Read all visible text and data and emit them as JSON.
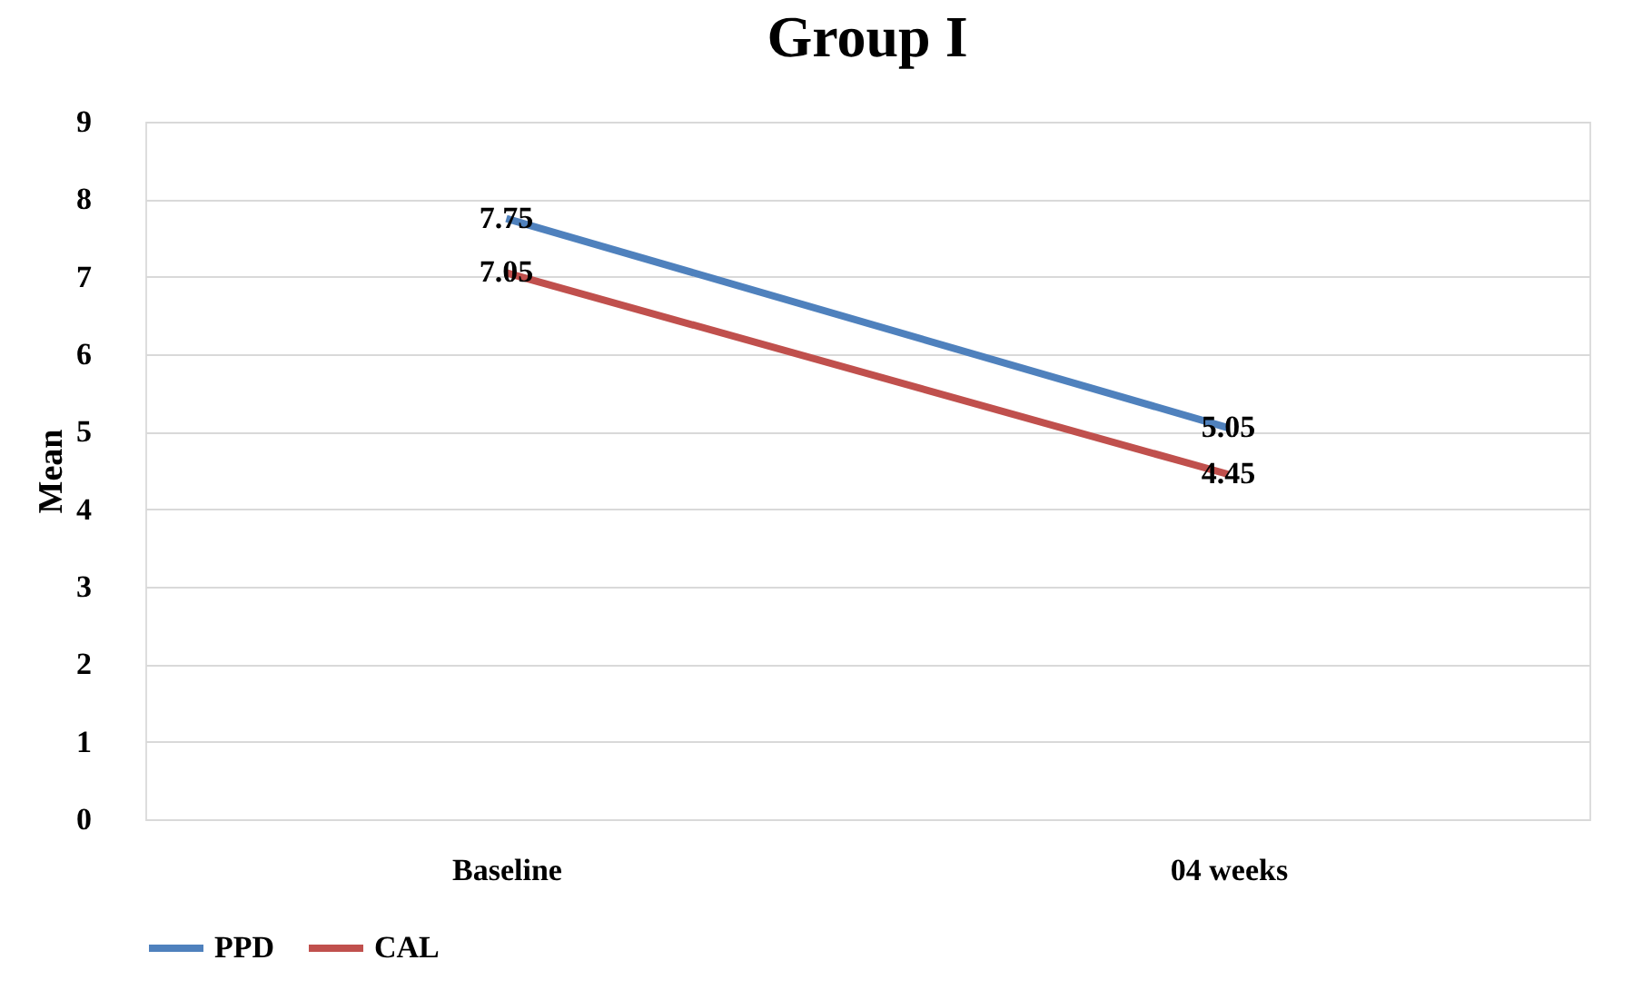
{
  "chart_data": {
    "type": "line",
    "title": "Group  I",
    "ylabel": "Mean",
    "categories": [
      "Baseline",
      "04 weeks"
    ],
    "series": [
      {
        "name": "PPD",
        "color": "#4f81bd",
        "values": [
          7.75,
          5.05
        ]
      },
      {
        "name": "CAL",
        "color": "#c0504d",
        "values": [
          7.05,
          4.45
        ]
      }
    ],
    "ylim": [
      0,
      9
    ],
    "yticks": [
      0,
      1,
      2,
      3,
      4,
      5,
      6,
      7,
      8,
      9
    ],
    "grid": "y",
    "legend": "bottom",
    "data_labels": true,
    "marker": "none",
    "line_style": "solid"
  }
}
